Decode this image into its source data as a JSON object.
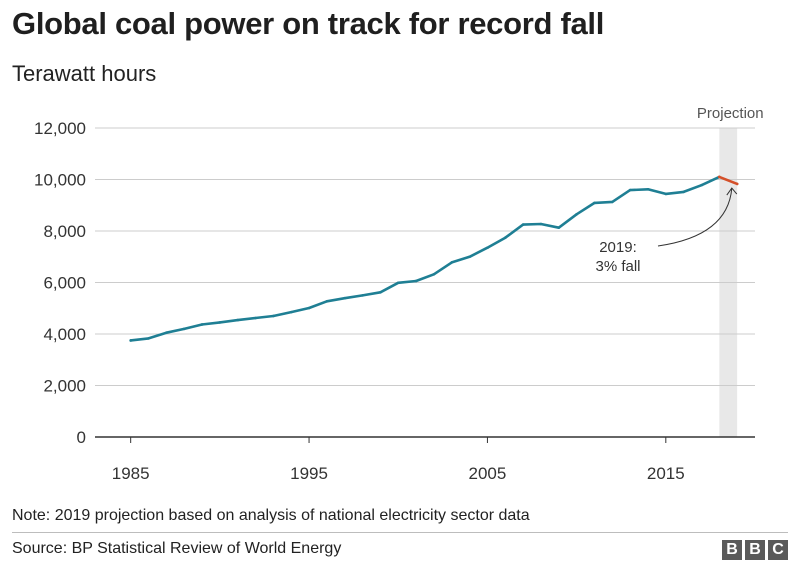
{
  "chart_data": {
    "type": "line",
    "title": "Global coal power on track for record fall",
    "subtitle": "Terawatt hours",
    "x": [
      1985,
      1986,
      1987,
      1988,
      1989,
      1990,
      1991,
      1992,
      1993,
      1994,
      1995,
      1996,
      1997,
      1998,
      1999,
      2000,
      2001,
      2002,
      2003,
      2004,
      2005,
      2006,
      2007,
      2008,
      2009,
      2010,
      2011,
      2012,
      2013,
      2014,
      2015,
      2016,
      2017,
      2018,
      2019
    ],
    "series": [
      {
        "values": [
          3750,
          3830,
          4050,
          4200,
          4370,
          4450,
          4540,
          4620,
          4700,
          4850,
          5010,
          5270,
          5390,
          5500,
          5620,
          5990,
          6060,
          6320,
          6780,
          7000,
          7350,
          7740,
          8250,
          8270,
          8130,
          8650,
          9090,
          9130,
          9590,
          9620,
          9440,
          9520,
          9780,
          10100,
          null
        ],
        "color": "#1f7f94"
      },
      {
        "values": [
          null,
          null,
          null,
          null,
          null,
          null,
          null,
          null,
          null,
          null,
          null,
          null,
          null,
          null,
          null,
          null,
          null,
          null,
          null,
          null,
          null,
          null,
          null,
          null,
          null,
          null,
          null,
          null,
          null,
          null,
          null,
          null,
          null,
          10100,
          9830
        ],
        "color": "#d4502a"
      }
    ],
    "ylim": [
      0,
      12000
    ],
    "xlim": [
      1983,
      2020
    ],
    "yticks": [
      0,
      2000,
      4000,
      6000,
      8000,
      10000,
      12000
    ],
    "ytick_labels": [
      "0",
      "2,000",
      "4,000",
      "6,000",
      "8,000",
      "10,000",
      "12,000"
    ],
    "xticks": [
      1985,
      1995,
      2005,
      2015
    ],
    "xtick_labels": [
      "1985",
      "1995",
      "2005",
      "2015"
    ],
    "grid": true,
    "projection": {
      "label": "Projection",
      "from": 2018,
      "to": 2019,
      "shade_color": "#e8e8e8"
    },
    "annotation": {
      "line1": "2019:",
      "line2": "3% fall",
      "x": 2018.7,
      "y": 9900
    }
  },
  "footer": {
    "note": "Note: 2019 projection based on analysis of national electricity sector data",
    "source": "Source: BP Statistical Review of World Energy",
    "logo_letters": [
      "B",
      "B",
      "C"
    ]
  }
}
